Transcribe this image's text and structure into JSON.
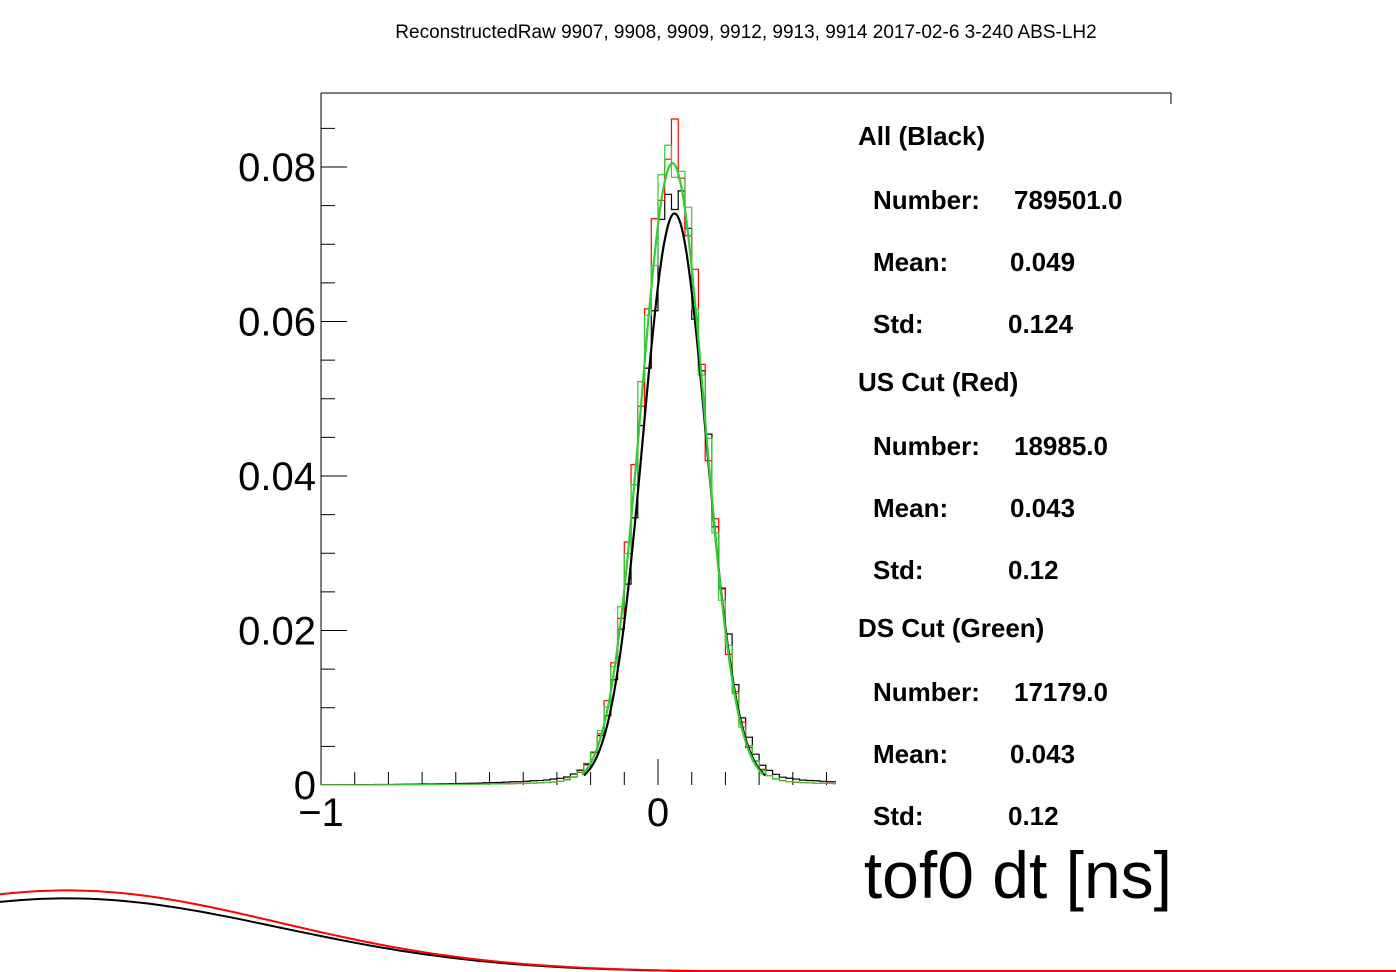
{
  "chart_data": {
    "type": "line",
    "title": "ReconstructedRaw 9907, 9908, 9909, 9912, 9913, 9914 2017-02-6 3-240 ABS-LH2",
    "xlabel": "tof0 dt [ns]",
    "ylabel": "",
    "xlim": [
      -1,
      0.53
    ],
    "ylim": [
      0,
      0.0895
    ],
    "y_ticks": [
      "0",
      "0.02",
      "0.04",
      "0.06",
      "0.08"
    ],
    "y_tick_values": [
      0,
      0.02,
      0.04,
      0.06,
      0.08
    ],
    "x_ticks": [
      "−1",
      "0"
    ],
    "x_tick_values": [
      -1,
      0
    ],
    "grid": false,
    "series": [
      {
        "name": "All (Black)",
        "color": "#000000",
        "kind": "histogram+fit",
        "number": 789501.0,
        "mean": 0.049,
        "std": 0.124,
        "peak": 0.074
      },
      {
        "name": "US Cut (Red)",
        "color": "#ff0000",
        "kind": "histogram",
        "number": 18985.0,
        "mean": 0.043,
        "std": 0.12,
        "peak": 0.0815
      },
      {
        "name": "DS Cut (Green)",
        "color": "#33cc33",
        "kind": "histogram+fit",
        "number": 17179.0,
        "mean": 0.043,
        "std": 0.12,
        "peak": 0.0805
      }
    ]
  },
  "stats_box": [
    {
      "header": "All (Black)",
      "rows": [
        {
          "label": "Number:",
          "value": "789501.0"
        },
        {
          "label": "Mean:",
          "value": "0.049"
        },
        {
          "label": "Std:",
          "value": "0.124"
        }
      ]
    },
    {
      "header": "US Cut (Red)",
      "rows": [
        {
          "label": "Number:",
          "value": "18985.0"
        },
        {
          "label": "Mean:",
          "value": "0.043"
        },
        {
          "label": "Std:",
          "value": "0.12"
        }
      ]
    },
    {
      "header": "DS Cut (Green)",
      "rows": [
        {
          "label": "Number:",
          "value": "17179.0"
        },
        {
          "label": "Mean:",
          "value": "0.043"
        },
        {
          "label": "Std:",
          "value": "0.12"
        }
      ]
    }
  ],
  "colors": {
    "all": "#000000",
    "us_cut": "#ff0000",
    "ds_cut": "#33cc33"
  }
}
